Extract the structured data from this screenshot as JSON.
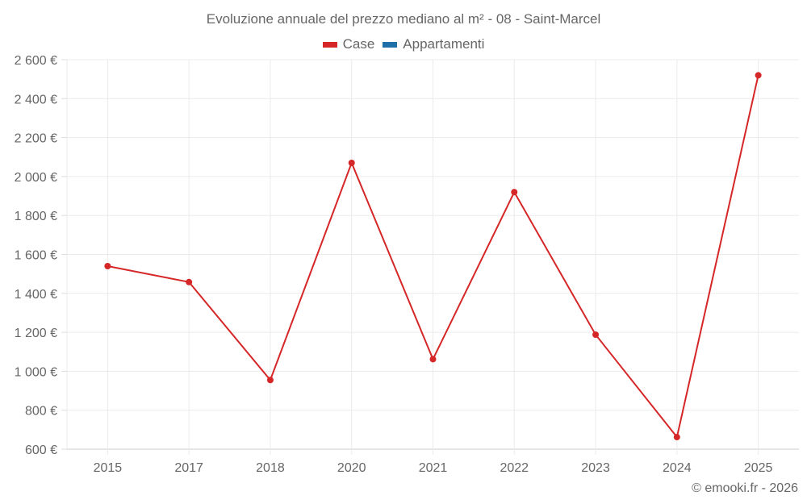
{
  "chart_data": {
    "type": "line",
    "title": "Evoluzione annuale del prezzo mediano al m² - 08 - Saint-Marcel",
    "xlabel": "",
    "ylabel": "",
    "categories": [
      "2015",
      "2017",
      "2018",
      "2020",
      "2021",
      "2022",
      "2023",
      "2024",
      "2025"
    ],
    "series": [
      {
        "name": "Case",
        "color": "#d62728",
        "values": [
          1540,
          1458,
          955,
          2070,
          1062,
          1920,
          1188,
          662,
          2520
        ]
      },
      {
        "name": "Appartamenti",
        "color": "#1f6fa8",
        "values": []
      }
    ],
    "ylim": [
      600,
      2600
    ],
    "yticks": [
      600,
      800,
      1000,
      1200,
      1400,
      1600,
      1800,
      2000,
      2200,
      2400,
      2600
    ],
    "ytick_labels": [
      "600 €",
      "800 €",
      "1 000 €",
      "1 200 €",
      "1 400 €",
      "1 600 €",
      "1 800 €",
      "2 000 €",
      "2 200 €",
      "2 400 €",
      "2 600 €"
    ],
    "grid": true,
    "legend_position": "top"
  },
  "legend": [
    {
      "label": "Case",
      "color": "#d62728"
    },
    {
      "label": "Appartamenti",
      "color": "#1f6fa8"
    }
  ],
  "credit": "© emooki.fr - 2026"
}
